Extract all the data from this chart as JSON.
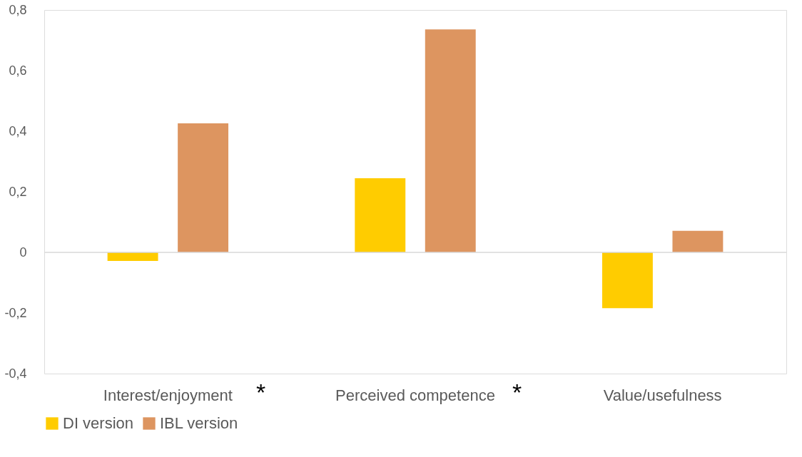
{
  "chart_data": {
    "type": "bar",
    "categories": [
      "Interest/enjoyment",
      "Perceived competence",
      "Value/usefulness"
    ],
    "series": [
      {
        "name": "DI version",
        "color": "#ffcc00",
        "values": [
          -0.028,
          0.245,
          -0.184
        ]
      },
      {
        "name": "IBL version",
        "color": "#dd9560",
        "values": [
          0.426,
          0.736,
          0.071
        ]
      }
    ],
    "ylim": [
      -0.4,
      0.8
    ],
    "yticks": [
      {
        "value": -0.4,
        "label": "-0,4"
      },
      {
        "value": -0.2,
        "label": "-0,2"
      },
      0,
      {
        "value": 0.2,
        "label": "0,2"
      },
      {
        "value": 0.4,
        "label": "0,4"
      },
      {
        "value": 0.6,
        "label": "0,6"
      },
      {
        "value": 0.8,
        "label": "0,8"
      }
    ],
    "ref_lines": [
      {
        "axis": "y",
        "value": 0,
        "color": "#d9d9d9"
      }
    ],
    "annotations": [
      "*",
      "*"
    ],
    "grid": false,
    "legend": "bottom"
  }
}
